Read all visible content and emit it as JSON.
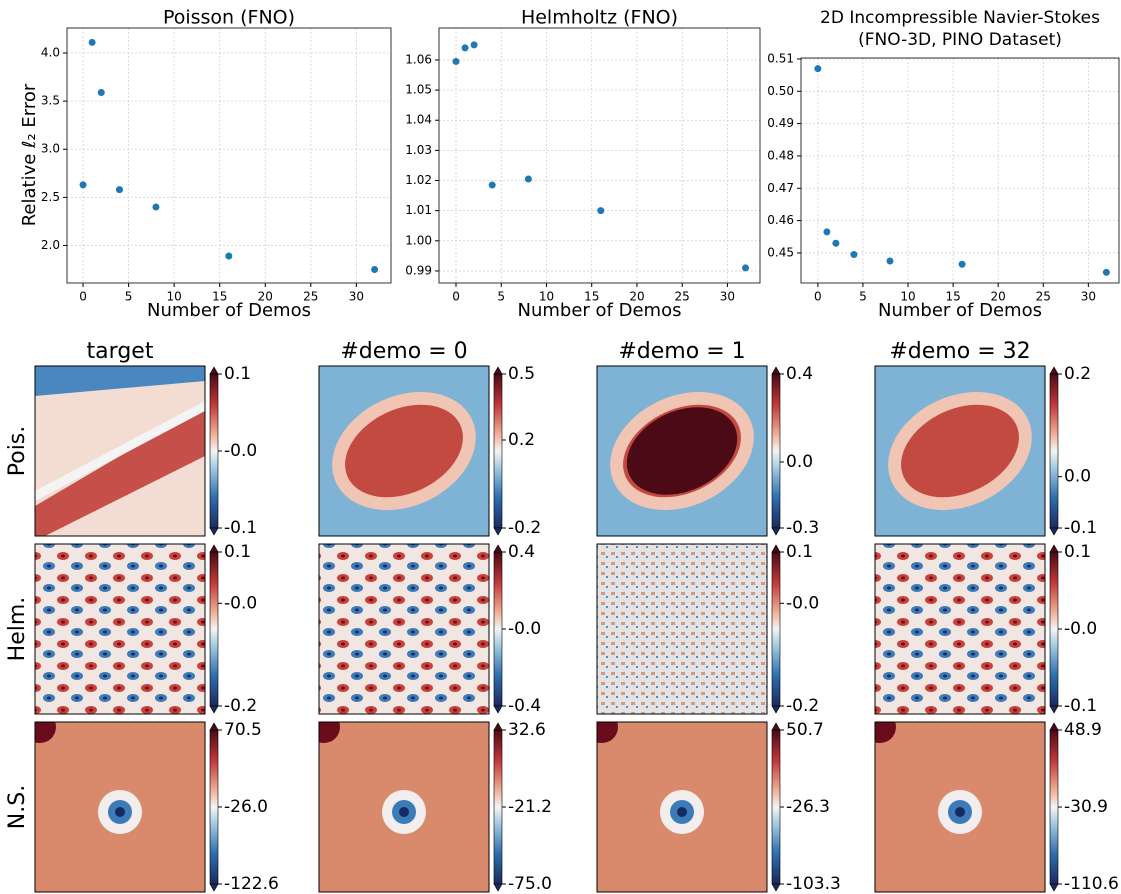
{
  "chart_data": [
    {
      "type": "scatter",
      "title": [
        "Poisson (FNO)"
      ],
      "x_label": "Number of Demos",
      "y_label": "Relative ℓ₂ Error",
      "x": [
        0,
        1,
        2,
        4,
        8,
        16,
        32
      ],
      "values": [
        2.63,
        4.11,
        3.59,
        2.58,
        2.4,
        1.89,
        1.75
      ],
      "color": "#1f77b4",
      "xlim": [
        -1.76,
        33.8
      ],
      "ylim": [
        1.61,
        4.26
      ],
      "xticks": [
        0,
        5,
        10,
        15,
        20,
        25,
        30
      ],
      "yticks": [
        {
          "value": 2,
          "label": "2.0"
        },
        2.5,
        {
          "value": 3,
          "label": "3.0"
        },
        3.5,
        {
          "value": 4,
          "label": "4.0"
        }
      ],
      "grid": true
    },
    {
      "type": "scatter",
      "title": [
        "Helmholtz (FNO)"
      ],
      "x_label": "Number of Demos",
      "x": [
        0,
        1,
        2,
        4,
        8,
        16,
        32
      ],
      "values": [
        1.0595,
        1.064,
        1.065,
        1.0185,
        1.0205,
        1.01,
        0.991
      ],
      "color": "#1f77b4",
      "xlim": [
        -1.88,
        33.6
      ],
      "ylim": [
        0.986,
        1.0706
      ],
      "xticks": [
        0,
        5,
        10,
        15,
        20,
        25,
        30
      ],
      "yticks": [
        0.99,
        {
          "value": 1,
          "label": "1.00"
        },
        1.01,
        1.02,
        1.03,
        1.04,
        1.05,
        1.06
      ],
      "grid": true
    },
    {
      "type": "scatter",
      "title": [
        "2D Incompressible Navier-Stokes",
        "(FNO-3D, PINO Dataset)"
      ],
      "x_label": "Number of Demos",
      "x": [
        0,
        1,
        2,
        4,
        8,
        16,
        32
      ],
      "values": [
        0.507,
        0.4565,
        0.453,
        0.4495,
        0.4475,
        0.4465,
        0.444
      ],
      "color": "#1f77b4",
      "xlim": [
        -1.87,
        33.4
      ],
      "ylim": [
        0.4407,
        0.5103
      ],
      "xticks": [
        0,
        5,
        10,
        15,
        20,
        25,
        30
      ],
      "yticks": [
        0.45,
        0.46,
        0.47,
        0.48,
        0.49,
        {
          "value": 0.5,
          "label": "0.50"
        },
        0.51
      ],
      "grid": true
    }
  ],
  "heatmap_grid": {
    "columns": [
      "target",
      "#demo = 0",
      "#demo = 1",
      "#demo = 32"
    ],
    "rows": [
      "Pois.",
      "Helm.",
      "N.S."
    ],
    "colorbars": [
      [
        {
          "clim": [
            -0.1,
            0.1
          ],
          "ticks": [
            -0.1,
            {
              "value": 0,
              "label": "-0.0"
            },
            0.1
          ]
        },
        {
          "clim": [
            -0.2,
            0.5
          ],
          "ticks": [
            -0.2,
            0.2,
            0.5
          ]
        },
        {
          "clim": [
            -0.3,
            0.4
          ],
          "ticks": [
            -0.3,
            {
              "value": 0,
              "label": "0.0"
            },
            0.4
          ]
        },
        {
          "clim": [
            -0.1,
            0.2
          ],
          "ticks": [
            -0.1,
            {
              "value": 0,
              "label": "0.0"
            },
            0.2
          ]
        }
      ],
      [
        {
          "clim": [
            -0.2,
            0.1
          ],
          "ticks": [
            -0.2,
            {
              "value": 0,
              "label": "-0.0"
            },
            0.1
          ]
        },
        {
          "clim": [
            -0.4,
            0.4
          ],
          "ticks": [
            -0.4,
            {
              "value": 0,
              "label": "-0.0"
            },
            0.4
          ]
        },
        {
          "clim": [
            -0.2,
            0.1
          ],
          "ticks": [
            -0.2,
            {
              "value": 0,
              "label": "-0.0"
            },
            0.1
          ]
        },
        {
          "clim": [
            -0.1,
            0.1
          ],
          "ticks": [
            -0.1,
            {
              "value": 0,
              "label": "-0.0"
            },
            0.1
          ]
        }
      ],
      [
        {
          "clim": [
            -122.6,
            70.5
          ],
          "ticks": [
            -122.6,
            {
              "value": -26,
              "label": "-26.0"
            },
            70.5
          ]
        },
        {
          "clim": [
            {
              "value": -75,
              "label": "-75.0"
            },
            32.6
          ],
          "ticks": [
            {
              "value": -75,
              "label": "-75.0"
            },
            -21.2,
            32.6
          ]
        },
        {
          "clim": [
            -103.3,
            50.7
          ],
          "ticks": [
            -103.3,
            -26.3,
            50.7
          ]
        },
        {
          "clim": [
            -110.6,
            48.9
          ],
          "ticks": [
            -110.6,
            -30.9,
            48.9
          ]
        }
      ]
    ]
  }
}
